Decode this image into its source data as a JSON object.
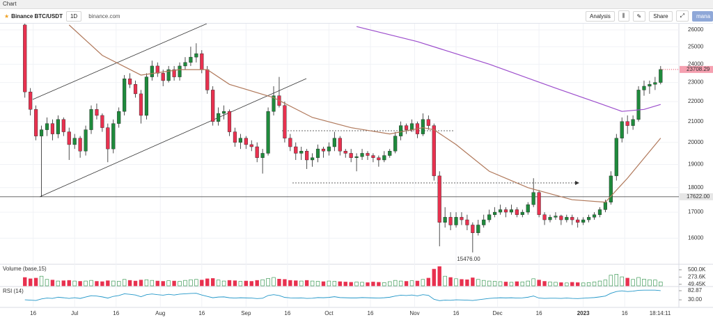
{
  "toolbar": {
    "section": "Chart",
    "symbol": "Binance BTC/USDT",
    "interval": "1D",
    "source": "binance.com",
    "analysis": "Analysis",
    "share": "Share",
    "user": "mana"
  },
  "chart_data": {
    "type": "candlestick",
    "up_color": "#1f8a3c",
    "down_color": "#e8314f",
    "candles": [
      [
        26300,
        26400,
        22200,
        22500
      ],
      [
        22500,
        22700,
        21300,
        21600
      ],
      [
        21600,
        21800,
        20100,
        20300
      ],
      [
        20300,
        20800,
        17622,
        20600
      ],
      [
        20600,
        21200,
        20300,
        20900
      ],
      [
        20900,
        21100,
        20100,
        20400
      ],
      [
        20400,
        21300,
        20200,
        21100
      ],
      [
        21100,
        21200,
        20300,
        20500
      ],
      [
        20500,
        20700,
        19200,
        19900
      ],
      [
        19900,
        20400,
        19700,
        20200
      ],
      [
        20200,
        20300,
        19300,
        19600
      ],
      [
        19600,
        20800,
        19400,
        20600
      ],
      [
        20600,
        21800,
        20400,
        21600
      ],
      [
        21600,
        21900,
        21100,
        21300
      ],
      [
        21300,
        21400,
        20500,
        20700
      ],
      [
        20700,
        20900,
        19100,
        19700
      ],
      [
        19700,
        21100,
        19500,
        20900
      ],
      [
        20900,
        21700,
        20700,
        21500
      ],
      [
        21500,
        23400,
        21300,
        23200
      ],
      [
        23200,
        23500,
        22700,
        22900
      ],
      [
        22900,
        23100,
        22200,
        22400
      ],
      [
        22400,
        22600,
        20900,
        21300
      ],
      [
        21300,
        23500,
        21100,
        23300
      ],
      [
        23300,
        24200,
        23100,
        23900
      ],
      [
        23900,
        24100,
        23300,
        23500
      ],
      [
        23500,
        23700,
        22800,
        23100
      ],
      [
        23100,
        23900,
        23000,
        23700
      ],
      [
        23700,
        23900,
        23100,
        23300
      ],
      [
        23300,
        24100,
        23100,
        23900
      ],
      [
        23900,
        24400,
        23700,
        24100
      ],
      [
        24100,
        25000,
        23900,
        24400
      ],
      [
        24400,
        25200,
        24100,
        24600
      ],
      [
        24600,
        24800,
        23500,
        23700
      ],
      [
        23700,
        23900,
        22400,
        22600
      ],
      [
        22600,
        22800,
        20800,
        21000
      ],
      [
        21000,
        21700,
        20800,
        21400
      ],
      [
        21400,
        21800,
        21100,
        21500
      ],
      [
        21500,
        21600,
        20300,
        20500
      ],
      [
        20500,
        20700,
        19800,
        20000
      ],
      [
        20000,
        20400,
        19700,
        20200
      ],
      [
        20200,
        20300,
        19700,
        19900
      ],
      [
        19900,
        20100,
        19600,
        19800
      ],
      [
        19800,
        20000,
        19100,
        19300
      ],
      [
        19300,
        19700,
        18600,
        19500
      ],
      [
        19500,
        21700,
        19400,
        21500
      ],
      [
        21500,
        22800,
        21300,
        22300
      ],
      [
        22300,
        23300,
        21700,
        21800
      ],
      [
        21800,
        22000,
        20000,
        20200
      ],
      [
        20200,
        20400,
        19600,
        19800
      ],
      [
        19800,
        20000,
        19200,
        19500
      ],
      [
        19500,
        19800,
        19200,
        19600
      ],
      [
        19600,
        19700,
        18800,
        19200
      ],
      [
        19200,
        19500,
        18900,
        19300
      ],
      [
        19300,
        19900,
        19100,
        19700
      ],
      [
        19700,
        19800,
        19300,
        19600
      ],
      [
        19600,
        20000,
        19400,
        19800
      ],
      [
        19800,
        20500,
        19600,
        20200
      ],
      [
        20200,
        20300,
        19400,
        19600
      ],
      [
        19600,
        19700,
        19300,
        19500
      ],
      [
        19500,
        19700,
        19100,
        19300
      ],
      [
        19300,
        19500,
        18700,
        19350
      ],
      [
        19350,
        19700,
        19200,
        19500
      ],
      [
        19500,
        19600,
        19200,
        19400
      ],
      [
        19400,
        19500,
        19100,
        19300
      ],
      [
        19300,
        19400,
        18900,
        19200
      ],
      [
        19200,
        19600,
        19100,
        19400
      ],
      [
        19400,
        19700,
        19300,
        19600
      ],
      [
        19600,
        20500,
        19500,
        20300
      ],
      [
        20300,
        21000,
        20100,
        20800
      ],
      [
        20800,
        20900,
        20400,
        20600
      ],
      [
        20600,
        21100,
        20500,
        20900
      ],
      [
        20900,
        21000,
        20200,
        20400
      ],
      [
        20400,
        21400,
        20300,
        21100
      ],
      [
        21100,
        21300,
        20600,
        20800
      ],
      [
        20800,
        20900,
        18300,
        18500
      ],
      [
        18500,
        18700,
        15700,
        16600
      ],
      [
        16600,
        17200,
        16400,
        16800
      ],
      [
        16800,
        17000,
        16300,
        16500
      ],
      [
        16500,
        17000,
        16400,
        16800
      ],
      [
        16800,
        17000,
        16500,
        16700
      ],
      [
        16700,
        16900,
        16300,
        16500
      ],
      [
        16500,
        16600,
        15476,
        16200
      ],
      [
        16200,
        16700,
        16100,
        16500
      ],
      [
        16500,
        16900,
        16400,
        16700
      ],
      [
        16700,
        17100,
        16600,
        16900
      ],
      [
        16900,
        17200,
        16800,
        17000
      ],
      [
        17000,
        17300,
        16900,
        17100
      ],
      [
        17100,
        17200,
        16800,
        17000
      ],
      [
        17000,
        17300,
        16900,
        17100
      ],
      [
        17100,
        17200,
        16800,
        16900
      ],
      [
        16900,
        17100,
        16800,
        17000
      ],
      [
        17000,
        17400,
        16900,
        17300
      ],
      [
        17300,
        18400,
        17200,
        17800
      ],
      [
        17800,
        17900,
        16800,
        16900
      ],
      [
        16900,
        17000,
        16500,
        16700
      ],
      [
        16700,
        16900,
        16600,
        16800
      ],
      [
        16800,
        17000,
        16700,
        16850
      ],
      [
        16850,
        16900,
        16500,
        16700
      ],
      [
        16700,
        16900,
        16600,
        16800
      ],
      [
        16800,
        16900,
        16500,
        16700
      ],
      [
        16700,
        16800,
        16400,
        16600
      ],
      [
        16600,
        16800,
        16500,
        16700
      ],
      [
        16700,
        16900,
        16600,
        16800
      ],
      [
        16800,
        17000,
        16700,
        16900
      ],
      [
        16900,
        17200,
        16800,
        17100
      ],
      [
        17100,
        17500,
        17000,
        17400
      ],
      [
        17400,
        18700,
        17300,
        18500
      ],
      [
        18500,
        20400,
        18300,
        20200
      ],
      [
        20200,
        21200,
        20000,
        21000
      ],
      [
        21000,
        21300,
        20400,
        20800
      ],
      [
        20800,
        21300,
        20600,
        21100
      ],
      [
        21100,
        22800,
        21000,
        22600
      ],
      [
        22600,
        23100,
        22300,
        22800
      ],
      [
        22800,
        23100,
        22400,
        22900
      ],
      [
        22900,
        23300,
        22600,
        23000
      ],
      [
        23000,
        23900,
        22900,
        23708.29
      ]
    ],
    "xlim": [
      -4.5,
      118.3
    ],
    "xticks": [
      {
        "value": 1.5,
        "label": "16"
      },
      {
        "value": 9,
        "label": "Jul"
      },
      {
        "value": 16.5,
        "label": "16"
      },
      {
        "value": 24.5,
        "label": "Aug"
      },
      {
        "value": 32,
        "label": "16"
      },
      {
        "value": 40,
        "label": "Sep"
      },
      {
        "value": 47.5,
        "label": "16"
      },
      {
        "value": 55,
        "label": "Oct"
      },
      {
        "value": 62.5,
        "label": "16"
      },
      {
        "value": 70.5,
        "label": "Nov"
      },
      {
        "value": 78,
        "label": "16"
      },
      {
        "value": 85.5,
        "label": "Dec"
      },
      {
        "value": 93,
        "label": "16"
      },
      {
        "value": 101,
        "label": "2023"
      },
      {
        "value": 108.5,
        "label": "16"
      }
    ],
    "time_label": "18:14:11",
    "ylim": [
      15080,
      26380
    ],
    "log_scale": true,
    "grid": true,
    "yticks": [
      16000,
      17000,
      18000,
      19000,
      20000,
      21000,
      22000,
      23000,
      24000,
      25000,
      26000
    ],
    "price_annotations": [
      {
        "value": 17622,
        "label": "17622.00"
      },
      {
        "value": 15476,
        "label": "15476.00"
      }
    ],
    "lines": [
      {
        "color": "#b0785a",
        "x": [
          8,
          14,
          21,
          28,
          33,
          37,
          45,
          52,
          59,
          66,
          72,
          74,
          78,
          84,
          91,
          99,
          105,
          109,
          115
        ],
        "values": [
          26300,
          24500,
          23400,
          23700,
          23700,
          22900,
          22200,
          21200,
          20700,
          20400,
          20700,
          20600,
          19900,
          18700,
          18000,
          17500,
          17400,
          18400,
          20200
        ]
      },
      {
        "color": "#9c4dcc",
        "x": [
          60,
          71,
          84,
          96,
          104,
          108,
          112,
          115
        ],
        "values": [
          26200,
          25300,
          24000,
          22700,
          21900,
          21500,
          21600,
          21850
        ]
      }
    ],
    "volume": {
      "title": "Volume (base,15)",
      "ylim": [
        0,
        650
      ],
      "yticks": [
        {
          "value": 500,
          "label": "500.0K"
        },
        {
          "value": 273.6,
          "label": "273.6K"
        },
        {
          "value": 49.45,
          "label": "49.45K"
        }
      ],
      "values": [
        260,
        220,
        240,
        300,
        200,
        180,
        150,
        160,
        170,
        150,
        140,
        150,
        170,
        140,
        130,
        160,
        150,
        140,
        200,
        170,
        150,
        180,
        190,
        170,
        150,
        140,
        160,
        150,
        140,
        170,
        190,
        200,
        180,
        220,
        230,
        180,
        150,
        170,
        160,
        140,
        150,
        140,
        170,
        190,
        230,
        260,
        210,
        200,
        170,
        160,
        150,
        170,
        150,
        140,
        130,
        150,
        140,
        130,
        120,
        110,
        120,
        110,
        100,
        120,
        110,
        100,
        130,
        170,
        150,
        140,
        160,
        150,
        200,
        240,
        520,
        600,
        300,
        260,
        220,
        200,
        190,
        250,
        200,
        170,
        150,
        140,
        130,
        120,
        110,
        130,
        120,
        150,
        220,
        180,
        140,
        120,
        110,
        100,
        90,
        110,
        100,
        90,
        100,
        120,
        150,
        180,
        330,
        360,
        280,
        240,
        200,
        260,
        210,
        190,
        180,
        120
      ]
    },
    "rsi": {
      "title": "RSI (14)",
      "color": "#2196c8",
      "ylim": [
        -10,
        103
      ],
      "yticks": [
        82.87,
        {
          "value": 30,
          "label": "30.00"
        }
      ],
      "values": [
        30,
        28,
        26,
        35,
        40,
        38,
        45,
        42,
        38,
        42,
        38,
        46,
        54,
        52,
        47,
        40,
        50,
        55,
        65,
        62,
        58,
        48,
        60,
        64,
        60,
        57,
        62,
        58,
        63,
        65,
        67,
        68,
        58,
        50,
        42,
        46,
        47,
        42,
        40,
        42,
        41,
        40,
        37,
        39,
        55,
        60,
        55,
        44,
        41,
        40,
        41,
        38,
        39,
        43,
        42,
        44,
        48,
        43,
        42,
        41,
        41,
        43,
        42,
        41,
        40,
        42,
        45,
        52,
        57,
        55,
        58,
        53,
        60,
        56,
        33,
        25,
        28,
        27,
        30,
        29,
        28,
        26,
        30,
        34,
        38,
        40,
        42,
        41,
        42,
        40,
        41,
        45,
        52,
        40,
        38,
        39,
        39,
        38,
        40,
        38,
        37,
        39,
        41,
        43,
        47,
        52,
        68,
        78,
        82,
        78,
        80,
        85,
        86,
        86,
        86,
        82.87
      ]
    }
  }
}
